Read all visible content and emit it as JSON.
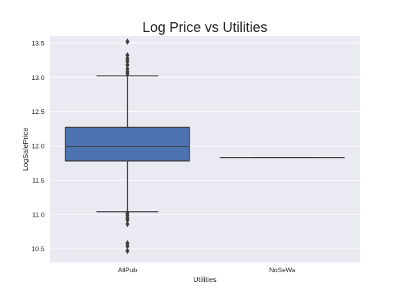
{
  "chart_data": {
    "type": "box",
    "title": "Log Price vs Utilities",
    "xlabel": "Utilities",
    "ylabel": "LogSalePrice",
    "ylim": [
      10.3,
      13.6
    ],
    "yticks": [
      "10.5",
      "11.0",
      "11.5",
      "12.0",
      "12.5",
      "13.0",
      "13.5"
    ],
    "grid": true,
    "categories": [
      "AllPub",
      "NoSeWa"
    ],
    "boxes": [
      {
        "category": "AllPub",
        "q1": 11.78,
        "median": 11.99,
        "q3": 12.27,
        "whisker_low": 11.04,
        "whisker_high": 13.02,
        "outliers": [
          10.47,
          10.54,
          10.58,
          10.86,
          10.92,
          10.95,
          10.99,
          11.02,
          13.05,
          13.08,
          13.12,
          13.18,
          13.23,
          13.27,
          13.32,
          13.52
        ]
      },
      {
        "category": "NoSeWa",
        "q1": 11.83,
        "median": 11.83,
        "q3": 11.83,
        "whisker_low": 11.83,
        "whisker_high": 11.83,
        "outliers": []
      }
    ],
    "box_color": "#4c72b0",
    "line_color": "#3f3f3f",
    "background_color": "#eaeaf2"
  }
}
